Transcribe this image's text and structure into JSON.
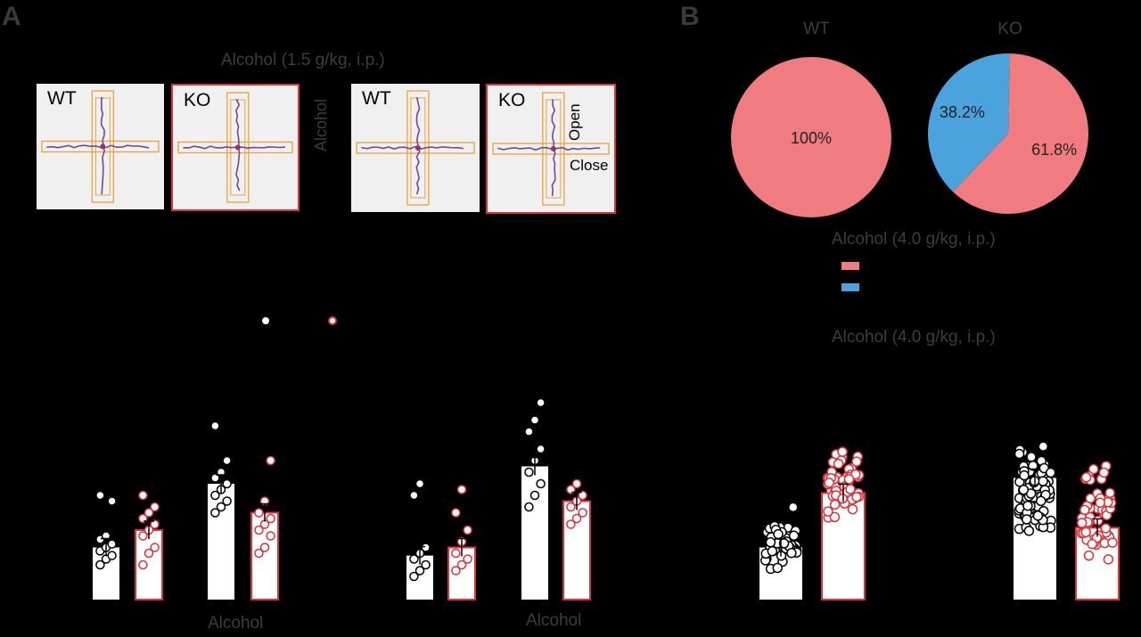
{
  "panels": {
    "a": "A",
    "b": "B"
  },
  "panel_a": {
    "dose_label": "Alcohol (1.5 g/kg, i.p.)",
    "alcohol_vertical_label": "Alcohol",
    "mazes": [
      {
        "label": "WT",
        "group": "wt"
      },
      {
        "label": "KO",
        "group": "ko"
      },
      {
        "label": "WT",
        "group": "wt"
      },
      {
        "label": "KO",
        "group": "ko",
        "open_label": "Open",
        "close_label": "Close"
      }
    ],
    "bottom_labels": [
      "Alcohol",
      "Alcohol"
    ],
    "legend_colors": {
      "wt": "#ffffff",
      "ko": "#e0303a"
    }
  },
  "panel_b": {
    "dose_label_1": "Alcohol (4.0 g/kg, i.p.)",
    "dose_label_2": "Alcohol (4.0 g/kg, i.p.)",
    "legend_colors": [
      "#f07c82",
      "#4aa3dc"
    ]
  },
  "colors": {
    "wt_fill": "#ffffff",
    "ko_edge": "#e0303a",
    "pie_red": "#f07c82",
    "pie_blue": "#4aa3dc"
  },
  "chart_data": [
    {
      "type": "pie",
      "title": "WT",
      "slices": [
        {
          "value": 100,
          "label": "100%",
          "color": "#f07c82"
        }
      ]
    },
    {
      "type": "pie",
      "title": "KO",
      "slices": [
        {
          "value": 61.8,
          "label": "61.8%",
          "color": "#f07c82"
        },
        {
          "value": 38.2,
          "label": "38.2%",
          "color": "#4aa3dc"
        }
      ]
    },
    {
      "type": "bar",
      "categories": [
        "",
        "Alcohol"
      ],
      "series": [
        {
          "group": "wt",
          "values": [
            0.45,
            1.0
          ],
          "points": [
            [
              0.3,
              0.35,
              0.38,
              0.42,
              0.45,
              0.48,
              0.52,
              0.55,
              0.85,
              0.9
            ],
            [
              0.75,
              0.8,
              0.85,
              0.9,
              0.95,
              1.0,
              1.05,
              1.1,
              1.2,
              1.5
            ]
          ]
        },
        {
          "group": "ko",
          "values": [
            0.6,
            0.75
          ],
          "points": [
            [
              0.3,
              0.4,
              0.45,
              0.55,
              0.6,
              0.65,
              0.7,
              0.75,
              0.8,
              0.9
            ],
            [
              0.4,
              0.45,
              0.55,
              0.6,
              0.65,
              0.7,
              0.75,
              0.85,
              1.2
            ]
          ]
        }
      ],
      "ylim": [
        0,
        2
      ]
    },
    {
      "type": "bar",
      "categories": [
        "",
        "Alcohol"
      ],
      "series": [
        {
          "group": "wt",
          "values": [
            0.38,
            1.15
          ],
          "points": [
            [
              0.2,
              0.25,
              0.3,
              0.35,
              0.4,
              0.45,
              0.9,
              1.0
            ],
            [
              0.8,
              0.9,
              1.0,
              1.1,
              1.2,
              1.3,
              1.45,
              1.55,
              1.7
            ]
          ]
        },
        {
          "group": "ko",
          "values": [
            0.45,
            0.85
          ],
          "points": [
            [
              0.25,
              0.3,
              0.35,
              0.4,
              0.5,
              0.6,
              0.75,
              0.95
            ],
            [
              0.65,
              0.7,
              0.75,
              0.8,
              0.85,
              0.9,
              0.95,
              1.0
            ]
          ]
        }
      ],
      "ylim": [
        0,
        2
      ]
    },
    {
      "type": "bar",
      "categories": [
        "",
        ""
      ],
      "series": [
        {
          "group": "wt",
          "values": [
            0.45,
            1.05
          ],
          "n": [
            55,
            80
          ],
          "range": [
            [
              0.2,
              0.85
            ],
            [
              0.4,
              1.55
            ]
          ]
        },
        {
          "group": "ko",
          "values": [
            0.92,
            0.62
          ],
          "n": [
            55,
            55
          ],
          "range": [
            [
              0.6,
              1.4
            ],
            [
              0.15,
              1.3
            ]
          ]
        }
      ],
      "ylim": [
        0,
        2
      ]
    }
  ]
}
